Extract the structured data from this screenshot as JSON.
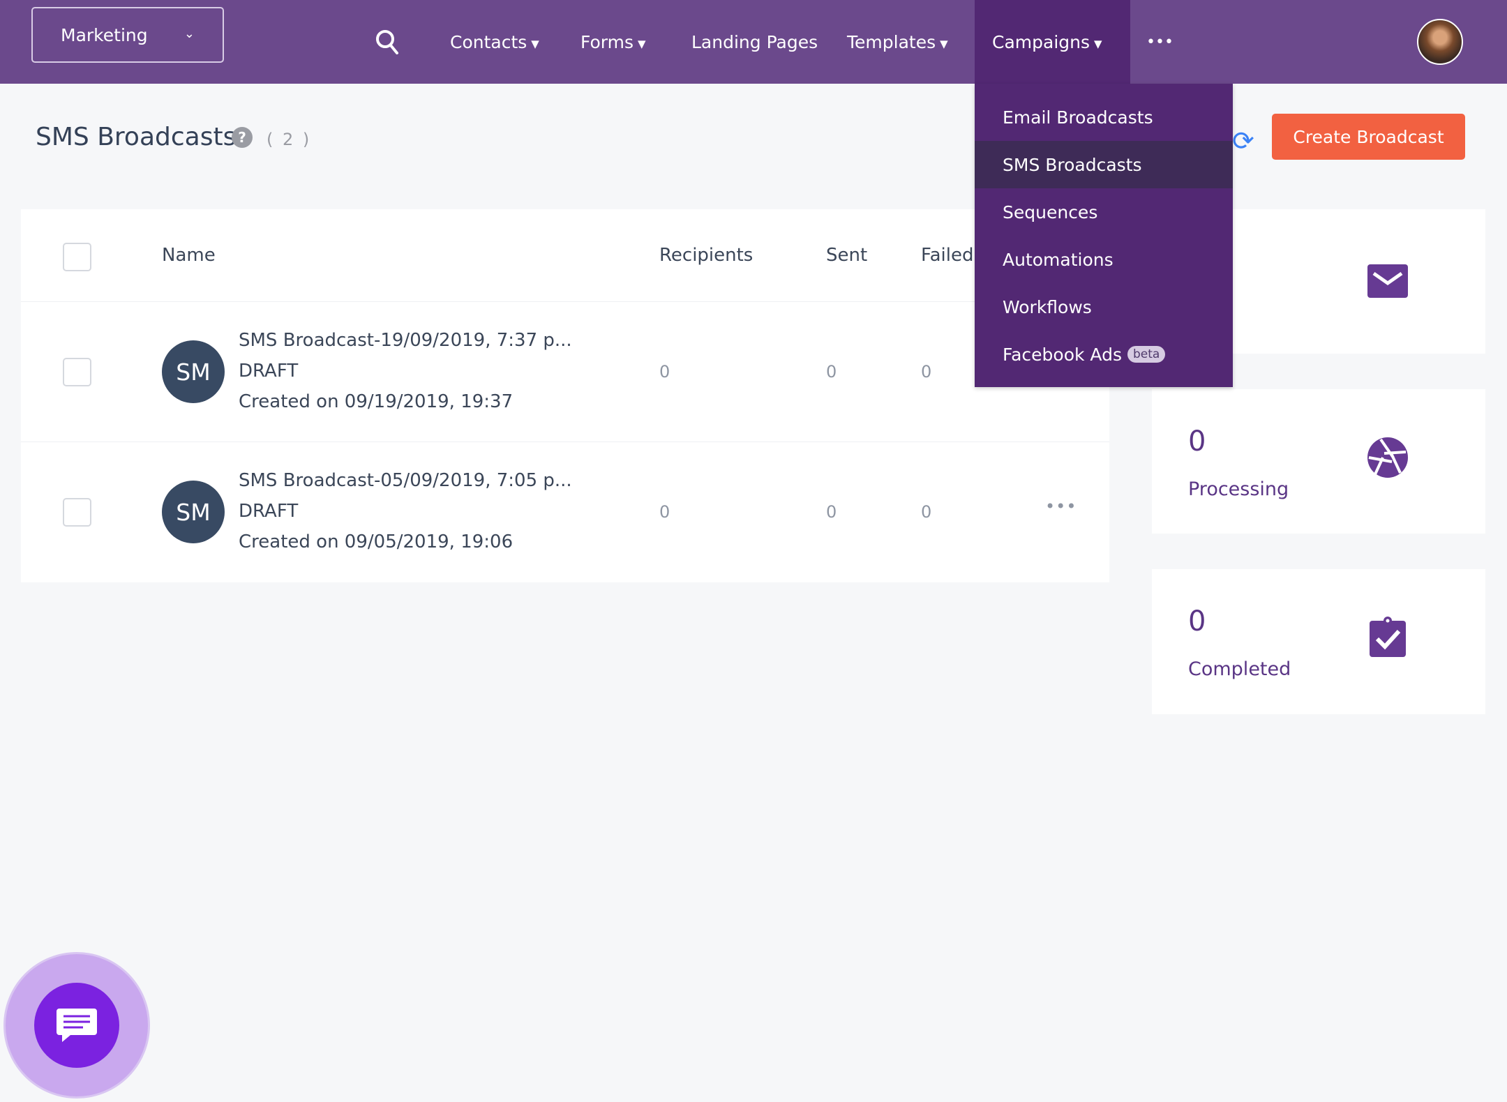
{
  "header": {
    "workspace": "Marketing",
    "nav": [
      {
        "label": "Contacts",
        "dropdown": true
      },
      {
        "label": "Forms",
        "dropdown": true
      },
      {
        "label": "Landing Pages",
        "dropdown": false
      },
      {
        "label": "Templates",
        "dropdown": true
      },
      {
        "label": "Campaigns",
        "dropdown": true
      }
    ],
    "more": "•••",
    "chevron": "⌄"
  },
  "campaigns_menu": {
    "items": [
      {
        "label": "Email Broadcasts"
      },
      {
        "label": "SMS Broadcasts",
        "active": true
      },
      {
        "label": "Sequences"
      },
      {
        "label": "Automations"
      },
      {
        "label": "Workflows"
      },
      {
        "label": "Facebook Ads",
        "badge": "beta"
      }
    ]
  },
  "page": {
    "title": "SMS Broadcasts",
    "help": "?",
    "count": "( 2 )",
    "create_label": "Create Broadcast",
    "refresh": "⟳"
  },
  "table": {
    "columns": {
      "name": "Name",
      "recipients": "Recipients",
      "sent": "Sent",
      "failed": "Failed"
    },
    "rows": [
      {
        "avatar": "SM",
        "name": "SMS Broadcast-19/09/2019, 7:37 p...",
        "status": "DRAFT",
        "created": "Created on 09/19/2019, 19:37",
        "recipients": "0",
        "sent": "0",
        "failed": "0"
      },
      {
        "avatar": "SM",
        "name": "SMS Broadcast-05/09/2019, 7:05 p...",
        "status": "DRAFT",
        "created": "Created on 09/05/2019, 19:06",
        "recipients": "0",
        "sent": "0",
        "failed": "0",
        "more": "•••"
      }
    ]
  },
  "stats": [
    {
      "icon": "envelope-icon"
    },
    {
      "value": "0",
      "label": "Processing",
      "icon": "aperture-icon"
    },
    {
      "value": "0",
      "label": "Completed",
      "icon": "clipboard-check-icon"
    }
  ],
  "colors": {
    "header": "#6b498c",
    "menu": "#522873",
    "menu_active": "#3e2b57",
    "primary_button": "#f26141",
    "stat_accent": "#5a3585",
    "chat": "#7b22e0"
  }
}
